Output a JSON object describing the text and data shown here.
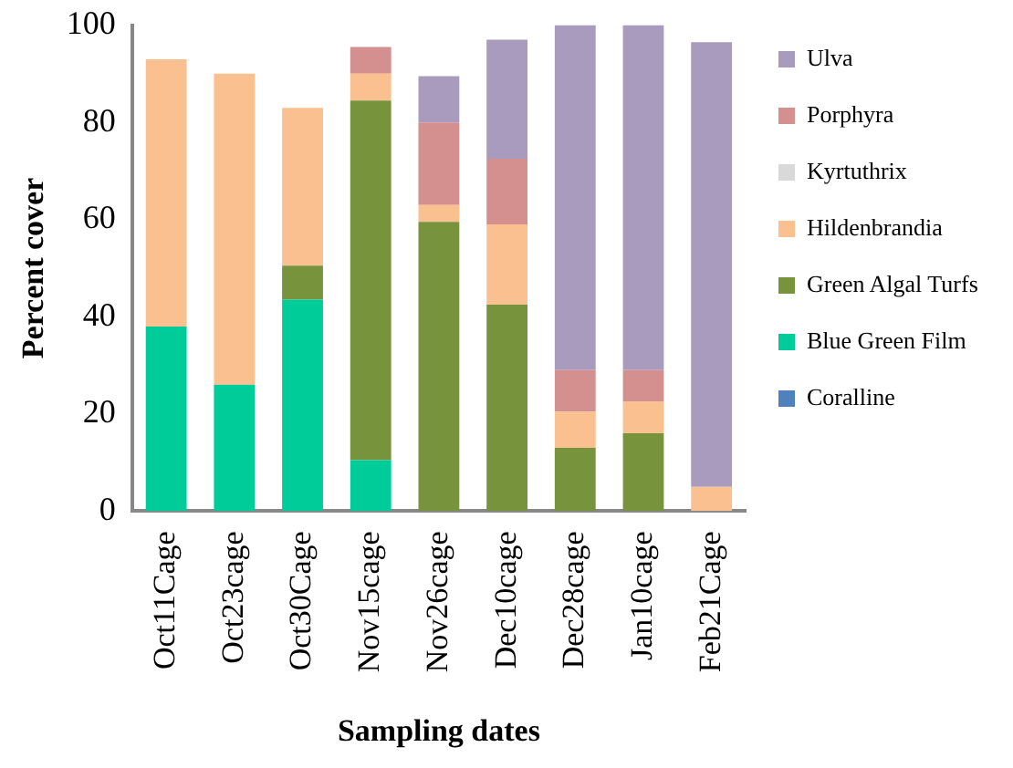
{
  "chart_data": {
    "type": "bar",
    "stacked": true,
    "xlabel": "Sampling dates",
    "ylabel": "Percent cover",
    "categories": [
      "Oct11Cage",
      "Oct23cage",
      "Oct30Cage",
      "Nov15cage",
      "Nov26cage",
      "Dec10cage",
      "Dec28cage",
      "Jan10cage",
      "Feb21Cage"
    ],
    "series": [
      {
        "name": "Coralline",
        "color": "#4f81bd",
        "values": [
          0,
          0,
          0,
          0,
          0,
          0,
          0,
          0,
          0
        ]
      },
      {
        "name": "Blue Green Film",
        "color": "#00cc99",
        "values": [
          38,
          26,
          43.5,
          10.5,
          0,
          0,
          0,
          0,
          0
        ]
      },
      {
        "name": "Green Algal Turfs",
        "color": "#77933c",
        "values": [
          0,
          0,
          7,
          74,
          59.5,
          42.5,
          13,
          16,
          0
        ]
      },
      {
        "name": "Hildenbrandia",
        "color": "#fac090",
        "values": [
          55,
          64,
          32.5,
          5.5,
          3.5,
          16.5,
          7.5,
          6.5,
          5
        ]
      },
      {
        "name": "Kyrtuthrix",
        "color": "#d9d9d9",
        "values": [
          0,
          0,
          0,
          0,
          0,
          0,
          0,
          0,
          0
        ]
      },
      {
        "name": "Porphyra",
        "color": "#d4908f",
        "values": [
          0,
          0,
          0,
          5.5,
          17,
          13.5,
          8.5,
          6.5,
          0
        ]
      },
      {
        "name": "Ulva",
        "color": "#a99bbd",
        "values": [
          0,
          0,
          0,
          0,
          9.5,
          24.5,
          71,
          71,
          91.5
        ]
      }
    ],
    "ylim": [
      0,
      100
    ],
    "yticks": [
      0,
      20,
      40,
      60,
      80,
      100
    ],
    "grid": false,
    "legend": "right"
  }
}
